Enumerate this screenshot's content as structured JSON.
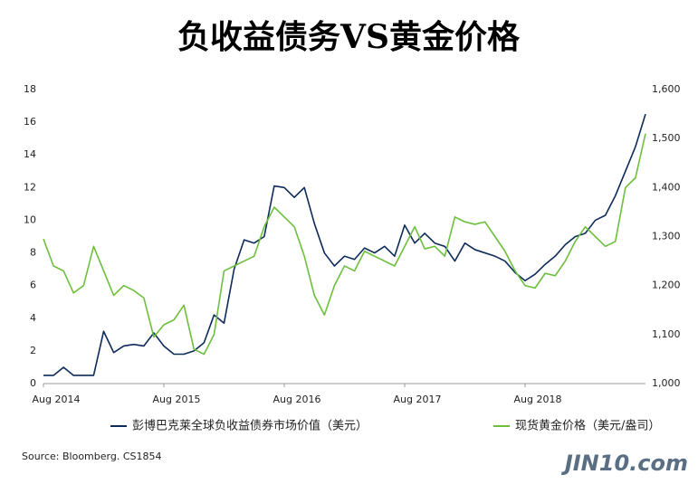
{
  "chart_data": {
    "type": "line",
    "title": "负收益债务VS黄金价格",
    "source": "Source: Bloomberg. CS1854",
    "watermark": "JIN10.com",
    "categories": [
      "Aug 2014",
      null,
      null,
      null,
      null,
      null,
      null,
      null,
      null,
      null,
      null,
      null,
      "Aug 2015",
      null,
      null,
      null,
      null,
      null,
      null,
      null,
      null,
      null,
      null,
      null,
      "Aug 2016",
      null,
      null,
      null,
      null,
      null,
      null,
      null,
      null,
      null,
      null,
      null,
      "Aug 2017",
      null,
      null,
      null,
      null,
      null,
      null,
      null,
      null,
      null,
      null,
      null,
      "Aug 2018",
      null,
      null,
      null,
      null,
      null,
      null,
      null,
      null,
      null,
      null,
      null,
      null
    ],
    "ylim": [
      0,
      18
    ],
    "yticks": [
      0,
      2,
      4,
      6,
      8,
      10,
      12,
      14,
      16,
      18
    ],
    "y2lim": [
      1000,
      1600
    ],
    "y2ticks": [
      {
        "value": 1000,
        "label": "1,000"
      },
      {
        "value": 1100,
        "label": "1,100"
      },
      {
        "value": 1200,
        "label": "1,200"
      },
      {
        "value": 1300,
        "label": "1,300"
      },
      {
        "value": 1400,
        "label": "1,400"
      },
      {
        "value": 1500,
        "label": "1,500"
      },
      {
        "value": 1600,
        "label": "1,600"
      }
    ],
    "series": [
      {
        "name": "彭博巴克莱全球负收益债券市场价值（美元）",
        "color": "#0d2b5a",
        "values": [
          0.5,
          0.5,
          1.0,
          0.5,
          0.5,
          0.5,
          3.2,
          1.9,
          2.3,
          2.4,
          2.3,
          3.1,
          2.3,
          1.8,
          1.8,
          2.0,
          2.5,
          4.2,
          3.7,
          7.0,
          8.8,
          8.6,
          9.0,
          12.1,
          12.0,
          11.4,
          12.0,
          9.8,
          8.0,
          7.2,
          7.8,
          7.6,
          8.3,
          8.0,
          8.4,
          7.8,
          9.7,
          8.6,
          9.2,
          8.6,
          8.4,
          7.5,
          8.6,
          8.2,
          8.0,
          7.8,
          7.5,
          6.8,
          6.3,
          6.7,
          7.3,
          7.8,
          8.5,
          9.0,
          9.2,
          10.0,
          10.3,
          11.5,
          13.0,
          14.5,
          16.5
        ]
      },
      {
        "name": "现货黄金价格（美元/盎司）",
        "color": "#6cbf3c",
        "axis": "y2",
        "values": [
          1295,
          1240,
          1230,
          1185,
          1200,
          1280,
          1230,
          1180,
          1200,
          1190,
          1175,
          1095,
          1120,
          1130,
          1160,
          1070,
          1060,
          1100,
          1230,
          1240,
          1250,
          1260,
          1320,
          1360,
          1340,
          1320,
          1260,
          1180,
          1140,
          1200,
          1240,
          1230,
          1270,
          1260,
          1250,
          1240,
          1280,
          1320,
          1275,
          1280,
          1260,
          1340,
          1330,
          1325,
          1330,
          1300,
          1270,
          1230,
          1200,
          1195,
          1225,
          1220,
          1250,
          1290,
          1320,
          1300,
          1280,
          1290,
          1400,
          1420,
          1510
        ]
      }
    ]
  }
}
